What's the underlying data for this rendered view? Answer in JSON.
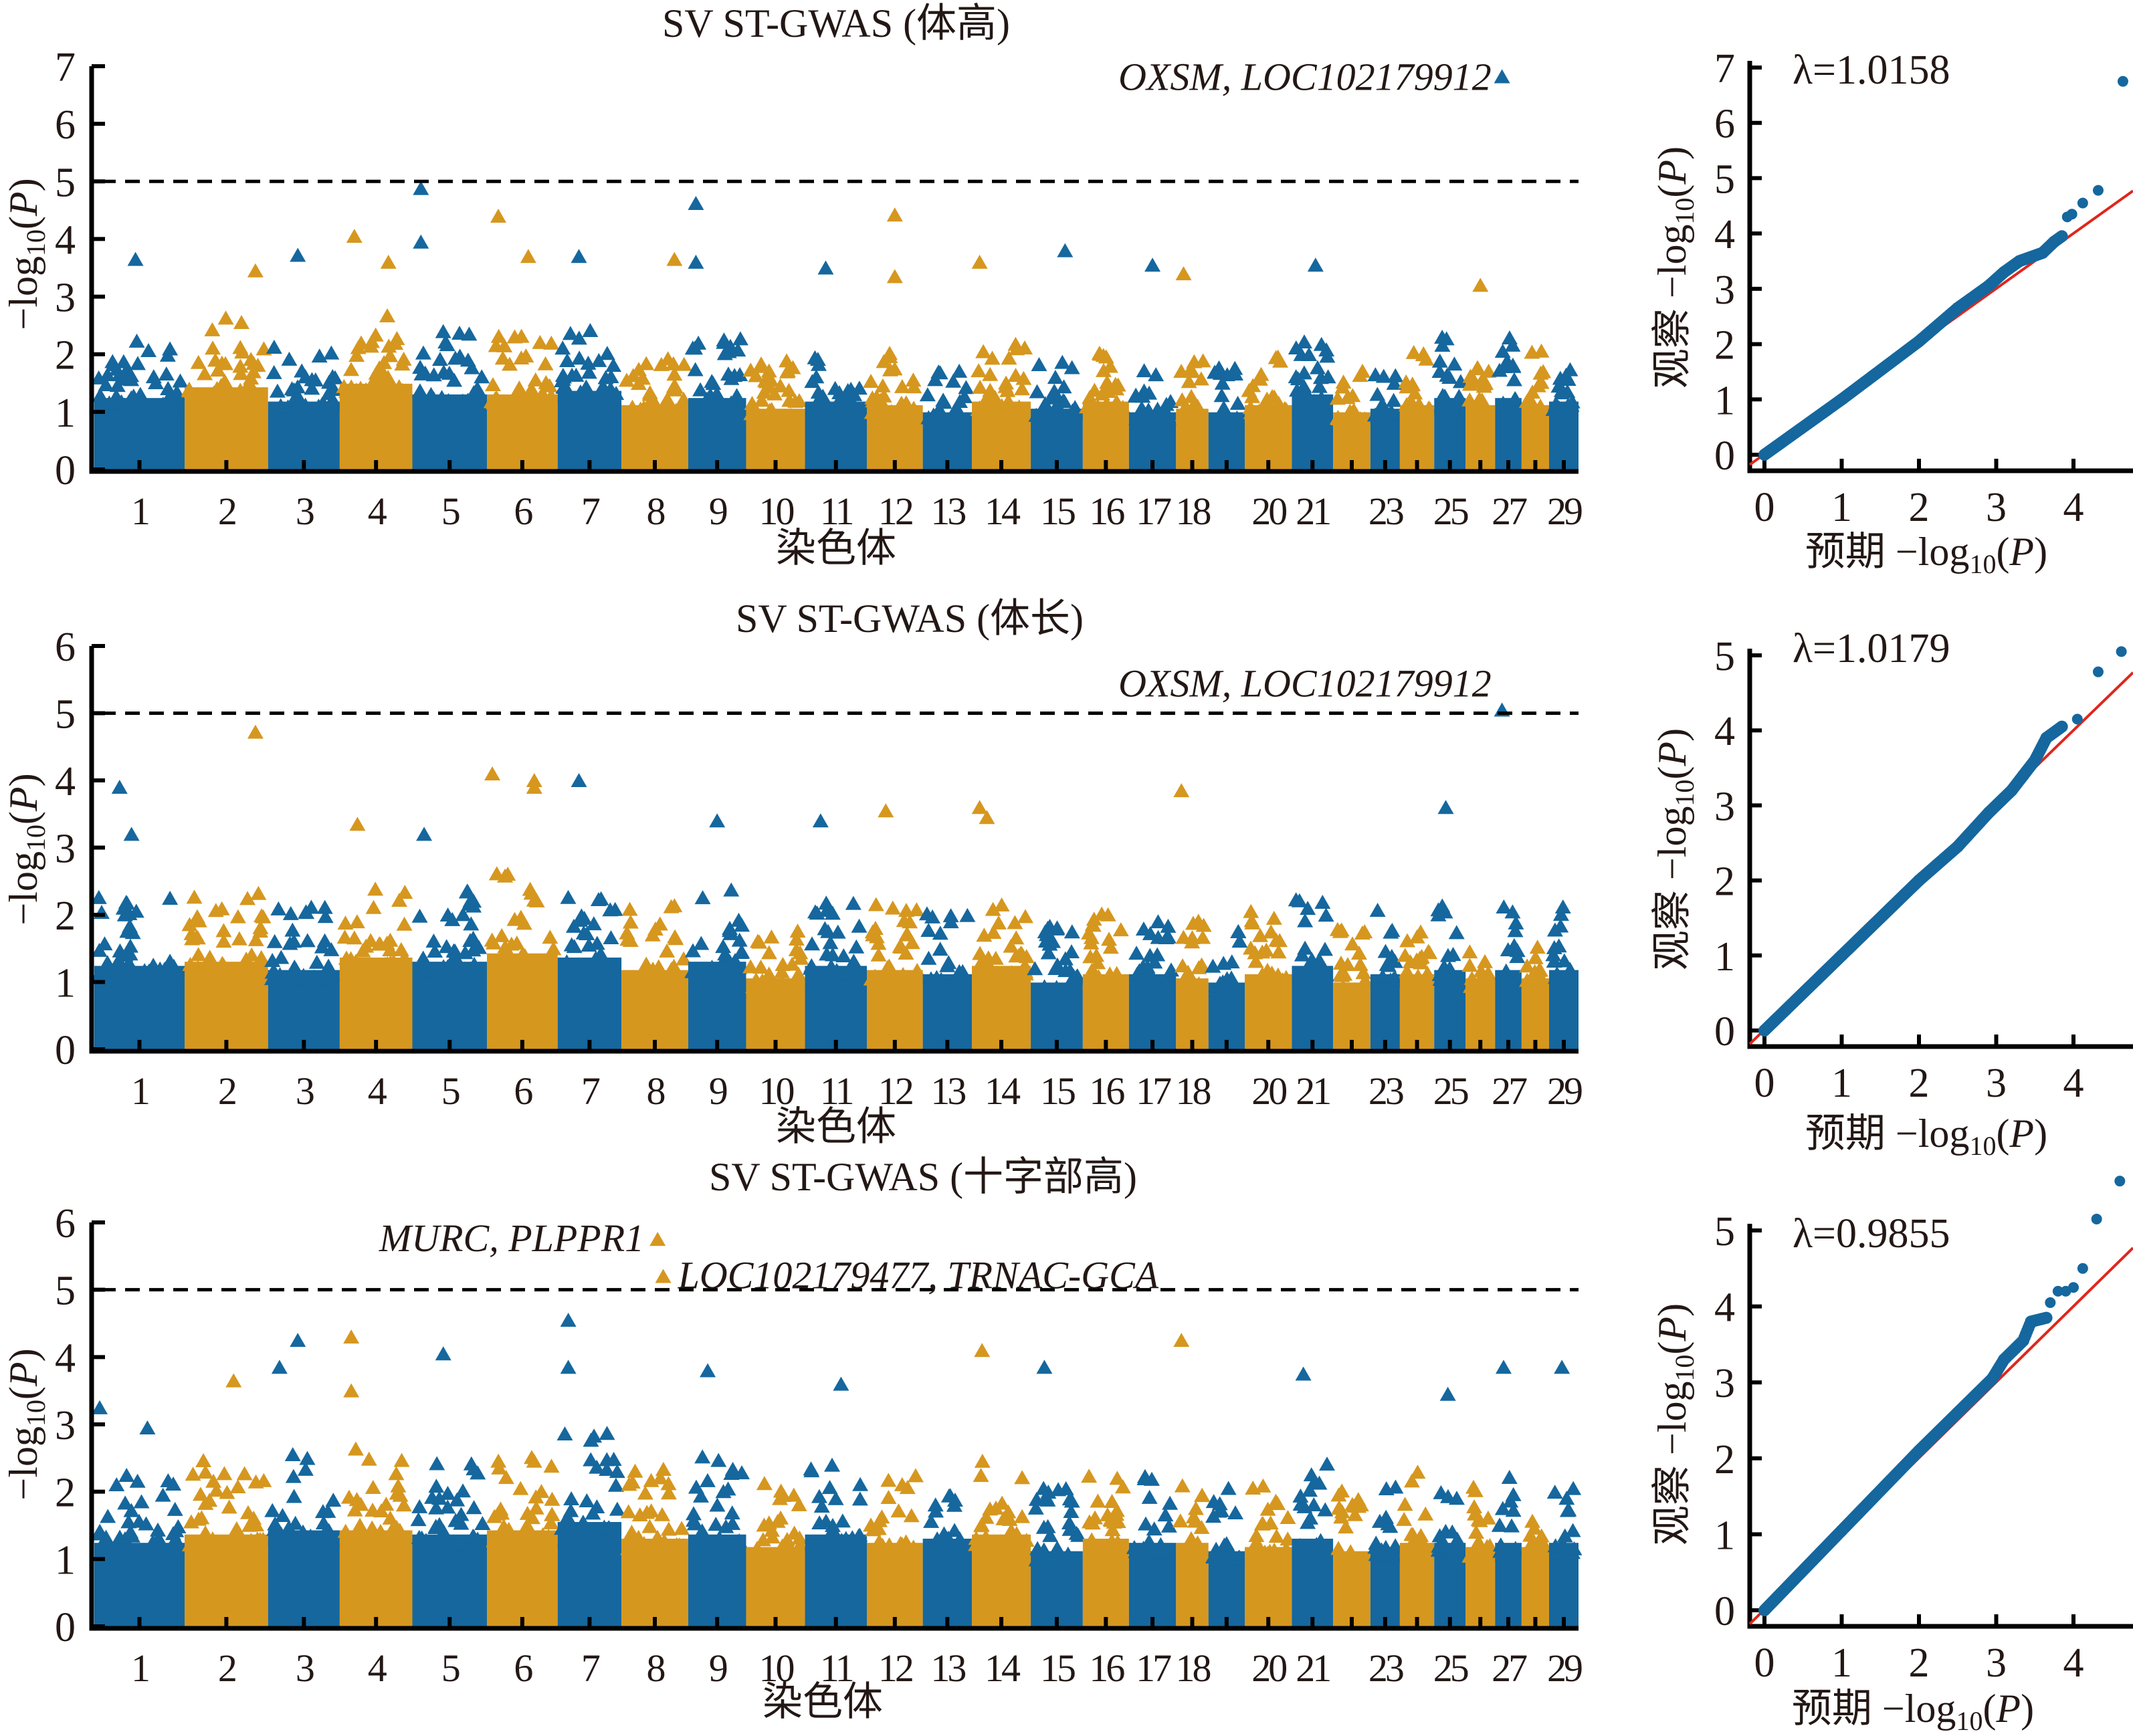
{
  "figure": {
    "colors": {
      "blue": "#15679e",
      "gold": "#d6971f",
      "qq_point": "#15679e",
      "qq_line": "#e0261c",
      "text": "#231815"
    }
  },
  "chart_data": [
    {
      "type": "scatter",
      "subtype": "manhattan",
      "title": "SV ST-GWAS (体高)",
      "xlabel": "染色体",
      "ylabel": "−log10(P)",
      "ylim": [
        0,
        7
      ],
      "yticks": [
        "0",
        "1",
        "2",
        "3",
        "4",
        "5",
        "6",
        "7"
      ],
      "threshold": 5,
      "chromosomes": [
        "1",
        "2",
        "3",
        "4",
        "5",
        "6",
        "7",
        "8",
        "9",
        "10",
        "11",
        "12",
        "13",
        "14",
        "15",
        "16",
        "17",
        "18",
        "19",
        "20",
        "21",
        "22",
        "23",
        "24",
        "25",
        "26",
        "27",
        "28",
        "29"
      ],
      "chromosome_tick_labels": [
        "1",
        "2",
        "3",
        "4",
        "5",
        "6",
        "7",
        "8",
        "9",
        "10",
        "11",
        "12",
        "13",
        "14",
        "15",
        "16",
        "17",
        "18",
        "",
        "20",
        "21",
        "",
        "23",
        "",
        "25",
        "",
        "27",
        "",
        "29"
      ],
      "bulk_max_by_chr": [
        2.0,
        2.3,
        1.9,
        2.4,
        2.1,
        2.1,
        2.2,
        1.8,
        2.0,
        1.7,
        1.9,
        1.8,
        1.6,
        1.9,
        1.7,
        1.9,
        1.6,
        1.7,
        1.6,
        1.8,
        2.1,
        1.6,
        1.7,
        1.8,
        2.0,
        1.8,
        2.0,
        1.8,
        1.9
      ],
      "highlighted_points": [
        {
          "chr": "1",
          "pos": 0.45,
          "value": 3.65
        },
        {
          "chr": "2",
          "pos": 0.9,
          "value": 3.45
        },
        {
          "chr": "3",
          "pos": 0.4,
          "value": 3.72
        },
        {
          "chr": "4",
          "pos": 0.15,
          "value": 4.05
        },
        {
          "chr": "4",
          "pos": 0.7,
          "value": 3.6
        },
        {
          "chr": "5",
          "pos": 0.05,
          "value": 4.88
        },
        {
          "chr": "5",
          "pos": 0.05,
          "value": 3.95
        },
        {
          "chr": "6",
          "pos": 0.1,
          "value": 4.4
        },
        {
          "chr": "6",
          "pos": 0.6,
          "value": 3.7
        },
        {
          "chr": "7",
          "pos": 0.3,
          "value": 3.7
        },
        {
          "chr": "8",
          "pos": 0.85,
          "value": 3.65
        },
        {
          "chr": "9",
          "pos": 0.05,
          "value": 4.62
        },
        {
          "chr": "9",
          "pos": 0.05,
          "value": 3.6
        },
        {
          "chr": "11",
          "pos": 0.3,
          "value": 3.5
        },
        {
          "chr": "12",
          "pos": 0.5,
          "value": 4.42
        },
        {
          "chr": "12",
          "pos": 0.5,
          "value": 3.35
        },
        {
          "chr": "14",
          "pos": 0.05,
          "value": 3.6
        },
        {
          "chr": "15",
          "pos": 0.7,
          "value": 3.8
        },
        {
          "chr": "17",
          "pos": 0.5,
          "value": 3.55
        },
        {
          "chr": "18",
          "pos": 0.1,
          "value": 3.4
        },
        {
          "chr": "21",
          "pos": 0.6,
          "value": 3.55
        },
        {
          "chr": "26",
          "pos": 0.5,
          "value": 3.2
        },
        {
          "chr": "27",
          "pos": 0.1,
          "value": 6.82
        }
      ],
      "annotations": [
        {
          "text": "OXSM, LOC102179912",
          "chr": "27",
          "value": 6.82
        }
      ]
    },
    {
      "type": "scatter",
      "subtype": "qq",
      "lambda_label": "λ=1.0158",
      "lambda": 1.0158,
      "xlabel": "预期 −log10(P)",
      "ylabel": "观察 −log10(P)",
      "xlim": [
        -0.1,
        4.75
      ],
      "ylim": [
        -0.2,
        7
      ],
      "xticks": [
        "0",
        "1",
        "2",
        "3",
        "4"
      ],
      "yticks": [
        "0",
        "1",
        "2",
        "3",
        "4",
        "5",
        "6",
        "7"
      ],
      "curve": [
        [
          0,
          0
        ],
        [
          1,
          1.0
        ],
        [
          2,
          2.05
        ],
        [
          2.5,
          2.65
        ],
        [
          2.9,
          3.05
        ],
        [
          3.1,
          3.3
        ],
        [
          3.3,
          3.5
        ],
        [
          3.6,
          3.65
        ],
        [
          3.75,
          3.85
        ],
        [
          3.85,
          3.95
        ]
      ],
      "outliers": [
        [
          3.92,
          4.3
        ],
        [
          3.98,
          4.35
        ],
        [
          4.12,
          4.55
        ],
        [
          4.32,
          4.78
        ],
        [
          4.64,
          6.75
        ]
      ]
    },
    {
      "type": "scatter",
      "subtype": "manhattan",
      "title": "SV ST-GWAS (体长)",
      "xlabel": "染色体",
      "ylabel": "−log10(P)",
      "ylim": [
        0,
        6
      ],
      "yticks": [
        "0",
        "1",
        "2",
        "3",
        "4",
        "5",
        "6"
      ],
      "threshold": 5,
      "chromosomes": [
        "1",
        "2",
        "3",
        "4",
        "5",
        "6",
        "7",
        "8",
        "9",
        "10",
        "11",
        "12",
        "13",
        "14",
        "15",
        "16",
        "17",
        "18",
        "19",
        "20",
        "21",
        "22",
        "23",
        "24",
        "25",
        "26",
        "27",
        "28",
        "29"
      ],
      "chromosome_tick_labels": [
        "1",
        "2",
        "3",
        "4",
        "5",
        "6",
        "7",
        "8",
        "9",
        "10",
        "11",
        "12",
        "13",
        "14",
        "15",
        "16",
        "17",
        "18",
        "",
        "20",
        "21",
        "",
        "23",
        "",
        "25",
        "",
        "27",
        "",
        "29"
      ],
      "bulk_max_by_chr": [
        2.0,
        2.1,
        1.9,
        2.2,
        2.1,
        2.3,
        2.2,
        1.9,
        2.1,
        1.7,
        2.0,
        1.9,
        1.8,
        2.0,
        1.6,
        1.8,
        1.8,
        1.7,
        1.6,
        1.8,
        2.0,
        1.6,
        1.8,
        1.8,
        1.9,
        1.7,
        1.9,
        1.7,
        1.9
      ],
      "highlighted_points": [
        {
          "chr": "1",
          "pos": 0.25,
          "value": 3.9
        },
        {
          "chr": "1",
          "pos": 0.4,
          "value": 3.2
        },
        {
          "chr": "2",
          "pos": 0.9,
          "value": 4.72
        },
        {
          "chr": "4",
          "pos": 0.2,
          "value": 3.35
        },
        {
          "chr": "5",
          "pos": 0.1,
          "value": 3.2
        },
        {
          "chr": "6",
          "pos": 0.0,
          "value": 4.1
        },
        {
          "chr": "6",
          "pos": 0.7,
          "value": 4.0
        },
        {
          "chr": "6",
          "pos": 0.7,
          "value": 3.9
        },
        {
          "chr": "7",
          "pos": 0.3,
          "value": 4.0
        },
        {
          "chr": "9",
          "pos": 0.5,
          "value": 3.4
        },
        {
          "chr": "11",
          "pos": 0.2,
          "value": 3.4
        },
        {
          "chr": "12",
          "pos": 0.3,
          "value": 3.55
        },
        {
          "chr": "14",
          "pos": 0.05,
          "value": 3.6
        },
        {
          "chr": "14",
          "pos": 0.2,
          "value": 3.45
        },
        {
          "chr": "18",
          "pos": 0.0,
          "value": 3.85
        },
        {
          "chr": "25",
          "pos": 0.3,
          "value": 3.6
        },
        {
          "chr": "27",
          "pos": 0.1,
          "value": 5.05
        }
      ],
      "annotations": [
        {
          "text": "OXSM, LOC102179912",
          "chr": "27",
          "value": 5.05
        }
      ]
    },
    {
      "type": "scatter",
      "subtype": "qq",
      "lambda_label": "λ=1.0179",
      "lambda": 1.0179,
      "xlabel": "预期 −log10(P)",
      "ylabel": "观察 −log10(P)",
      "xlim": [
        -0.1,
        4.75
      ],
      "ylim": [
        -0.2,
        5.2
      ],
      "xticks": [
        "0",
        "1",
        "2",
        "3",
        "4"
      ],
      "yticks": [
        "0",
        "1",
        "2",
        "3",
        "4",
        "5"
      ],
      "curve": [
        [
          0,
          0
        ],
        [
          1,
          1.0
        ],
        [
          2,
          2.0
        ],
        [
          2.5,
          2.45
        ],
        [
          2.9,
          2.9
        ],
        [
          3.2,
          3.2
        ],
        [
          3.35,
          3.4
        ],
        [
          3.5,
          3.6
        ],
        [
          3.65,
          3.9
        ],
        [
          3.85,
          4.05
        ]
      ],
      "outliers": [
        [
          4.05,
          4.15
        ],
        [
          4.32,
          4.78
        ],
        [
          4.62,
          5.05
        ]
      ]
    },
    {
      "type": "scatter",
      "subtype": "manhattan",
      "title": "SV ST-GWAS (十字部高)",
      "xlabel": "染色体",
      "ylabel": "−log10(P)",
      "ylim": [
        0,
        6
      ],
      "yticks": [
        "0",
        "1",
        "2",
        "3",
        "4",
        "5",
        "6"
      ],
      "threshold": 5,
      "chromosomes": [
        "1",
        "2",
        "3",
        "4",
        "5",
        "6",
        "7",
        "8",
        "9",
        "10",
        "11",
        "12",
        "13",
        "14",
        "15",
        "16",
        "17",
        "18",
        "19",
        "20",
        "21",
        "22",
        "23",
        "24",
        "25",
        "26",
        "27",
        "28",
        "29"
      ],
      "chromosome_tick_labels": [
        "1",
        "2",
        "3",
        "4",
        "5",
        "6",
        "7",
        "8",
        "9",
        "10",
        "11",
        "12",
        "13",
        "14",
        "15",
        "16",
        "17",
        "18",
        "",
        "20",
        "21",
        "",
        "23",
        "",
        "25",
        "",
        "27",
        "",
        "29"
      ],
      "bulk_max_by_chr": [
        2.0,
        2.2,
        2.3,
        2.3,
        2.2,
        2.3,
        2.5,
        2.1,
        2.2,
        1.9,
        2.2,
        2.0,
        2.1,
        2.2,
        1.8,
        2.1,
        2.0,
        2.0,
        1.8,
        1.9,
        2.1,
        1.8,
        1.9,
        2.0,
        2.0,
        1.9,
        2.0,
        1.9,
        2.0
      ],
      "highlighted_points": [
        {
          "chr": "1",
          "pos": 0.0,
          "value": 3.25
        },
        {
          "chr": "1",
          "pos": 0.6,
          "value": 2.95
        },
        {
          "chr": "2",
          "pos": 0.6,
          "value": 3.65
        },
        {
          "chr": "3",
          "pos": 0.1,
          "value": 3.85
        },
        {
          "chr": "3",
          "pos": 0.4,
          "value": 4.25
        },
        {
          "chr": "4",
          "pos": 0.1,
          "value": 4.3
        },
        {
          "chr": "4",
          "pos": 0.1,
          "value": 3.5
        },
        {
          "chr": "5",
          "pos": 0.4,
          "value": 4.05
        },
        {
          "chr": "7",
          "pos": 0.1,
          "value": 4.55
        },
        {
          "chr": "7",
          "pos": 0.1,
          "value": 3.85
        },
        {
          "chr": "8",
          "pos": 0.55,
          "value": 5.75
        },
        {
          "chr": "8",
          "pos": 0.65,
          "value": 5.2
        },
        {
          "chr": "9",
          "pos": 0.3,
          "value": 3.8
        },
        {
          "chr": "11",
          "pos": 0.6,
          "value": 3.6
        },
        {
          "chr": "14",
          "pos": 0.1,
          "value": 4.1
        },
        {
          "chr": "15",
          "pos": 0.2,
          "value": 3.85
        },
        {
          "chr": "18",
          "pos": 0.0,
          "value": 4.25
        },
        {
          "chr": "21",
          "pos": 0.2,
          "value": 3.75
        },
        {
          "chr": "25",
          "pos": 0.4,
          "value": 3.45
        },
        {
          "chr": "27",
          "pos": 0.2,
          "value": 3.85
        },
        {
          "chr": "29",
          "pos": 0.4,
          "value": 3.85
        }
      ],
      "annotations": [
        {
          "text": "MURC, PLPPR1",
          "chr": "8",
          "value": 5.75,
          "side": "left"
        },
        {
          "text": "LOC102179477, TRNAC-GCA",
          "chr": "8",
          "value": 5.2,
          "side": "right"
        }
      ]
    },
    {
      "type": "scatter",
      "subtype": "qq",
      "lambda_label": "λ=0.9855",
      "lambda": 0.9855,
      "xlabel": "预期 −log10(P)",
      "ylabel": "观察 −log10(P)",
      "xlim": [
        -0.1,
        4.75
      ],
      "ylim": [
        -0.2,
        5.9
      ],
      "xticks": [
        "0",
        "1",
        "2",
        "3",
        "4"
      ],
      "yticks": [
        "0",
        "1",
        "2",
        "3",
        "4",
        "5"
      ],
      "curve": [
        [
          0,
          0
        ],
        [
          1,
          1.05
        ],
        [
          2,
          2.1
        ],
        [
          2.5,
          2.6
        ],
        [
          2.95,
          3.05
        ],
        [
          3.1,
          3.3
        ],
        [
          3.25,
          3.45
        ],
        [
          3.35,
          3.55
        ],
        [
          3.45,
          3.8
        ],
        [
          3.65,
          3.85
        ]
      ],
      "outliers": [
        [
          3.7,
          4.05
        ],
        [
          3.8,
          4.2
        ],
        [
          3.9,
          4.2
        ],
        [
          4.0,
          4.25
        ],
        [
          4.12,
          4.5
        ],
        [
          4.3,
          5.15
        ],
        [
          4.6,
          5.65
        ]
      ]
    }
  ]
}
